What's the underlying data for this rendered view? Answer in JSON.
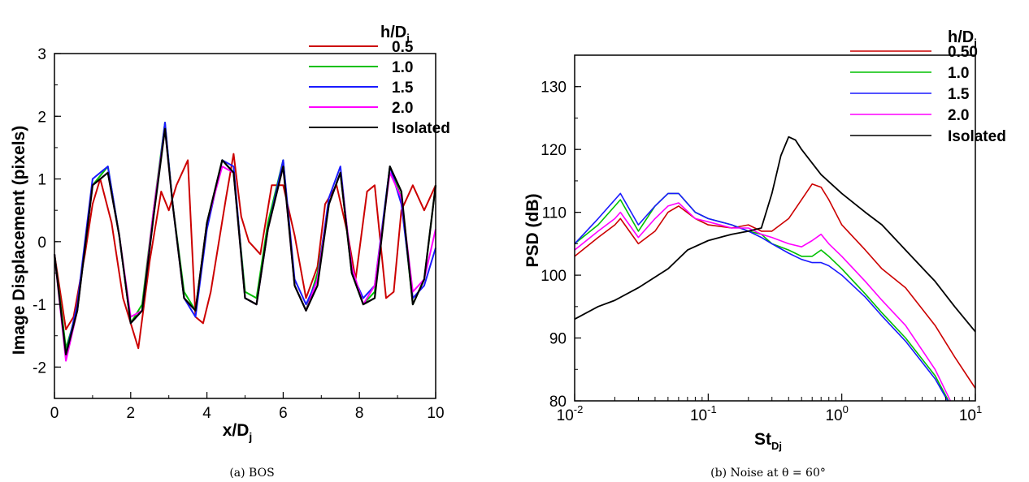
{
  "colors": {
    "0.5": "#cc0000",
    "1.0": "#00c000",
    "1.5": "#1a1aff",
    "2.0": "#ff00ff",
    "Isolated": "#000000"
  },
  "chart_data": [
    {
      "type": "line",
      "caption": "(a) BOS",
      "xlabel": "x/D",
      "xlabel_sub": "j",
      "ylabel": "Image Displacement (pixels)",
      "xlim": [
        0,
        10
      ],
      "ylim": [
        -2.5,
        3
      ],
      "xticks": [
        "0",
        "2",
        "4",
        "6",
        "8",
        "10"
      ],
      "yticks": [
        "-2",
        "-1",
        "0",
        "1",
        "2",
        "3"
      ],
      "legend_title": "h/D",
      "legend_title_sub": "j",
      "legend_position": "top-right",
      "series": [
        {
          "name": "0.5",
          "x": [
            0,
            0.3,
            0.5,
            0.8,
            1.0,
            1.2,
            1.5,
            1.8,
            2.0,
            2.2,
            2.5,
            2.8,
            3.0,
            3.2,
            3.5,
            3.7,
            3.9,
            4.1,
            4.5,
            4.7,
            4.9,
            5.1,
            5.4,
            5.7,
            6.0,
            6.3,
            6.6,
            6.9,
            7.1,
            7.4,
            7.7,
            7.9,
            8.2,
            8.4,
            8.7,
            8.9,
            9.1,
            9.4,
            9.7,
            10.0
          ],
          "y": [
            -0.2,
            -1.4,
            -1.2,
            -0.2,
            0.6,
            1.0,
            0.3,
            -0.9,
            -1.3,
            -1.7,
            -0.3,
            0.8,
            0.5,
            0.9,
            1.3,
            -1.2,
            -1.3,
            -0.8,
            0.7,
            1.4,
            0.4,
            0,
            -0.2,
            0.9,
            0.9,
            0.1,
            -0.9,
            -0.4,
            0.6,
            0.9,
            0.1,
            -0.6,
            0.8,
            0.9,
            -0.9,
            -0.8,
            0.5,
            0.9,
            0.5,
            0.9
          ]
        },
        {
          "name": "1.0",
          "x": [
            0,
            0.3,
            0.6,
            1.0,
            1.4,
            1.7,
            2.0,
            2.3,
            2.6,
            2.9,
            3.1,
            3.4,
            3.7,
            4.0,
            4.4,
            4.7,
            5.0,
            5.3,
            5.6,
            6.0,
            6.3,
            6.6,
            6.9,
            7.2,
            7.5,
            7.8,
            8.1,
            8.4,
            8.8,
            9.1,
            9.4,
            9.7,
            10.0
          ],
          "y": [
            -0.2,
            -1.7,
            -1.1,
            0.9,
            1.2,
            0.1,
            -1.3,
            -1.0,
            0.5,
            1.9,
            0.6,
            -0.8,
            -1.1,
            0.3,
            1.3,
            1.1,
            -0.8,
            -0.9,
            0.3,
            1.3,
            -0.7,
            -1.1,
            -0.5,
            0.6,
            1.1,
            -0.5,
            -1.0,
            -0.8,
            1.2,
            0.7,
            -1.0,
            -0.6,
            0.9
          ]
        },
        {
          "name": "1.5",
          "x": [
            0,
            0.3,
            0.6,
            1.0,
            1.4,
            1.7,
            2.0,
            2.3,
            2.6,
            2.9,
            3.1,
            3.4,
            3.7,
            4.0,
            4.4,
            4.7,
            5.0,
            5.3,
            5.6,
            6.0,
            6.3,
            6.6,
            6.9,
            7.2,
            7.5,
            7.8,
            8.1,
            8.4,
            8.8,
            9.1,
            9.4,
            9.7,
            10.0
          ],
          "y": [
            -0.2,
            -1.8,
            -1.0,
            1.0,
            1.2,
            0.1,
            -1.3,
            -1.1,
            0.4,
            1.9,
            0.6,
            -0.9,
            -1.2,
            0.2,
            1.3,
            1.2,
            -0.9,
            -1.0,
            0.2,
            1.3,
            -0.6,
            -1.0,
            -0.6,
            0.7,
            1.2,
            -0.5,
            -0.9,
            -0.7,
            1.2,
            0.6,
            -0.9,
            -0.7,
            -0.1
          ]
        },
        {
          "name": "2.0",
          "x": [
            0,
            0.3,
            0.6,
            1.0,
            1.4,
            1.7,
            2.0,
            2.3,
            2.6,
            2.9,
            3.1,
            3.4,
            3.7,
            4.0,
            4.4,
            4.7,
            5.0,
            5.3,
            5.6,
            6.0,
            6.3,
            6.6,
            6.9,
            7.2,
            7.5,
            7.8,
            8.1,
            8.4,
            8.8,
            9.1,
            9.4,
            9.7,
            10.0
          ],
          "y": [
            -0.2,
            -1.9,
            -1.1,
            0.9,
            1.1,
            0.1,
            -1.2,
            -1.1,
            0.5,
            1.8,
            0.6,
            -0.9,
            -1.1,
            0.3,
            1.2,
            1.1,
            -0.9,
            -1.0,
            0.2,
            1.2,
            -0.7,
            -1.1,
            -0.6,
            0.6,
            1.1,
            -0.4,
            -1.0,
            -0.7,
            1.1,
            0.7,
            -0.8,
            -0.6,
            0.2
          ]
        },
        {
          "name": "Isolated",
          "x": [
            0,
            0.3,
            0.6,
            1.0,
            1.4,
            1.7,
            2.0,
            2.3,
            2.6,
            2.9,
            3.1,
            3.4,
            3.7,
            4.0,
            4.4,
            4.7,
            5.0,
            5.3,
            5.6,
            6.0,
            6.3,
            6.6,
            6.9,
            7.2,
            7.5,
            7.8,
            8.1,
            8.4,
            8.8,
            9.1,
            9.4,
            9.7,
            10.0
          ],
          "y": [
            -0.2,
            -1.8,
            -1.1,
            0.9,
            1.1,
            0.1,
            -1.3,
            -1.1,
            0.4,
            1.8,
            0.6,
            -0.9,
            -1.1,
            0.3,
            1.3,
            1.1,
            -0.9,
            -1.0,
            0.2,
            1.2,
            -0.7,
            -1.1,
            -0.7,
            0.6,
            1.1,
            -0.5,
            -1.0,
            -0.9,
            1.2,
            0.8,
            -1.0,
            -0.6,
            0.9
          ]
        }
      ]
    },
    {
      "type": "line",
      "caption": "(b) Noise at θ = 60°",
      "xlabel": "St",
      "xlabel_sub": "Dj",
      "ylabel": "PSD (dB)",
      "xscale": "log",
      "xlim": [
        0.01,
        10
      ],
      "ylim": [
        80,
        135
      ],
      "xticks": [
        {
          "value": 0.01,
          "base": "10",
          "exp": "-2"
        },
        {
          "value": 0.1,
          "base": "10",
          "exp": "-1"
        },
        {
          "value": 1,
          "base": "10",
          "exp": "0"
        },
        {
          "value": 10,
          "base": "10",
          "exp": "1"
        }
      ],
      "yticks": [
        "80",
        "90",
        "100",
        "110",
        "120",
        "130"
      ],
      "legend_title": "h/D",
      "legend_title_sub": "j",
      "legend_position": "top-right",
      "series": [
        {
          "name": "0.50",
          "color_key": "0.5",
          "x": [
            0.01,
            0.015,
            0.02,
            0.022,
            0.03,
            0.04,
            0.05,
            0.06,
            0.08,
            0.1,
            0.15,
            0.2,
            0.25,
            0.3,
            0.4,
            0.5,
            0.6,
            0.7,
            0.8,
            1.0,
            1.5,
            2,
            3,
            5,
            7,
            10
          ],
          "y": [
            103,
            106,
            108,
            109,
            105,
            107,
            110,
            111,
            109,
            108,
            107.5,
            108,
            107,
            107,
            109,
            112,
            114.5,
            114,
            112,
            108,
            104,
            101,
            98,
            92,
            87,
            82
          ]
        },
        {
          "name": "1.0",
          "color_key": "1.0",
          "x": [
            0.01,
            0.015,
            0.02,
            0.022,
            0.03,
            0.04,
            0.05,
            0.06,
            0.08,
            0.1,
            0.15,
            0.2,
            0.25,
            0.3,
            0.4,
            0.5,
            0.6,
            0.7,
            0.8,
            1.0,
            1.5,
            2,
            3,
            5,
            6.3
          ],
          "y": [
            105,
            108,
            111,
            112,
            107,
            111,
            113,
            113,
            110,
            109,
            108,
            107,
            106.5,
            105,
            104,
            103,
            103,
            104,
            103,
            101,
            97,
            94,
            90,
            84,
            80
          ]
        },
        {
          "name": "1.5",
          "color_key": "1.5",
          "x": [
            0.01,
            0.015,
            0.02,
            0.022,
            0.03,
            0.04,
            0.05,
            0.06,
            0.08,
            0.1,
            0.15,
            0.2,
            0.25,
            0.3,
            0.4,
            0.5,
            0.6,
            0.7,
            0.8,
            1.0,
            1.5,
            2,
            3,
            5,
            6.2
          ],
          "y": [
            105,
            109,
            112,
            113,
            108,
            111,
            113,
            113,
            110,
            109,
            108,
            107,
            106,
            105,
            103.5,
            102.5,
            102,
            102,
            101.5,
            100,
            96.5,
            93.5,
            89.5,
            83.5,
            80
          ]
        },
        {
          "name": "2.0",
          "color_key": "2.0",
          "x": [
            0.01,
            0.015,
            0.02,
            0.022,
            0.03,
            0.04,
            0.05,
            0.06,
            0.08,
            0.1,
            0.15,
            0.2,
            0.25,
            0.3,
            0.4,
            0.5,
            0.6,
            0.7,
            0.8,
            1.0,
            1.5,
            2,
            3,
            5,
            6.5
          ],
          "y": [
            104,
            107,
            109,
            110,
            106,
            109,
            111,
            111.5,
            109,
            108.5,
            107.5,
            107.5,
            106.5,
            106,
            105,
            104.5,
            105.5,
            106.5,
            105,
            103,
            99,
            96,
            92,
            85,
            80
          ]
        },
        {
          "name": "Isolated",
          "color_key": "Isolated",
          "x": [
            0.01,
            0.015,
            0.02,
            0.03,
            0.05,
            0.07,
            0.1,
            0.15,
            0.2,
            0.25,
            0.3,
            0.35,
            0.4,
            0.45,
            0.5,
            0.7,
            1.0,
            1.5,
            2,
            3,
            5,
            7,
            10
          ],
          "y": [
            93,
            95,
            96,
            98,
            101,
            104,
            105.5,
            106.5,
            107,
            107.5,
            113,
            119,
            122,
            121.5,
            120,
            116,
            113,
            110,
            108,
            104,
            99,
            95,
            91
          ]
        }
      ]
    }
  ]
}
